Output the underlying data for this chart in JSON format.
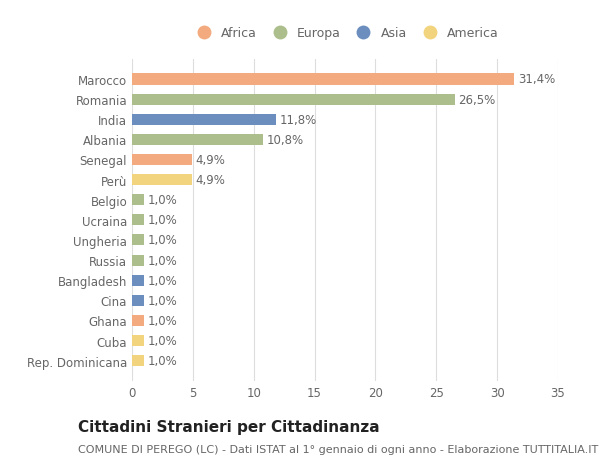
{
  "categories": [
    "Rep. Dominicana",
    "Cuba",
    "Ghana",
    "Cina",
    "Bangladesh",
    "Russia",
    "Ungheria",
    "Ucraina",
    "Belgio",
    "Perù",
    "Senegal",
    "Albania",
    "India",
    "Romania",
    "Marocco"
  ],
  "values": [
    1.0,
    1.0,
    1.0,
    1.0,
    1.0,
    1.0,
    1.0,
    1.0,
    1.0,
    4.9,
    4.9,
    10.8,
    11.8,
    26.5,
    31.4
  ],
  "labels": [
    "1,0%",
    "1,0%",
    "1,0%",
    "1,0%",
    "1,0%",
    "1,0%",
    "1,0%",
    "1,0%",
    "1,0%",
    "4,9%",
    "4,9%",
    "10,8%",
    "11,8%",
    "26,5%",
    "31,4%"
  ],
  "continents": [
    "America",
    "America",
    "Africa",
    "Asia",
    "Asia",
    "Europa",
    "Europa",
    "Europa",
    "Europa",
    "America",
    "Africa",
    "Europa",
    "Asia",
    "Europa",
    "Africa"
  ],
  "continent_colors": {
    "Africa": "#F2AA7E",
    "Europa": "#ABBE8C",
    "Asia": "#6B8EBF",
    "America": "#F2D47E"
  },
  "legend_order": [
    "Africa",
    "Europa",
    "Asia",
    "America"
  ],
  "title": "Cittadini Stranieri per Cittadinanza",
  "subtitle": "COMUNE DI PEREGO (LC) - Dati ISTAT al 1° gennaio di ogni anno - Elaborazione TUTTITALIA.IT",
  "xlim": [
    0,
    35
  ],
  "xticks": [
    0,
    5,
    10,
    15,
    20,
    25,
    30,
    35
  ],
  "background_color": "#FFFFFF",
  "grid_color": "#DDDDDD",
  "bar_height": 0.55,
  "label_fontsize": 8.5,
  "ytick_fontsize": 8.5,
  "xtick_fontsize": 8.5,
  "title_fontsize": 11,
  "subtitle_fontsize": 8.0,
  "text_color": "#666666"
}
